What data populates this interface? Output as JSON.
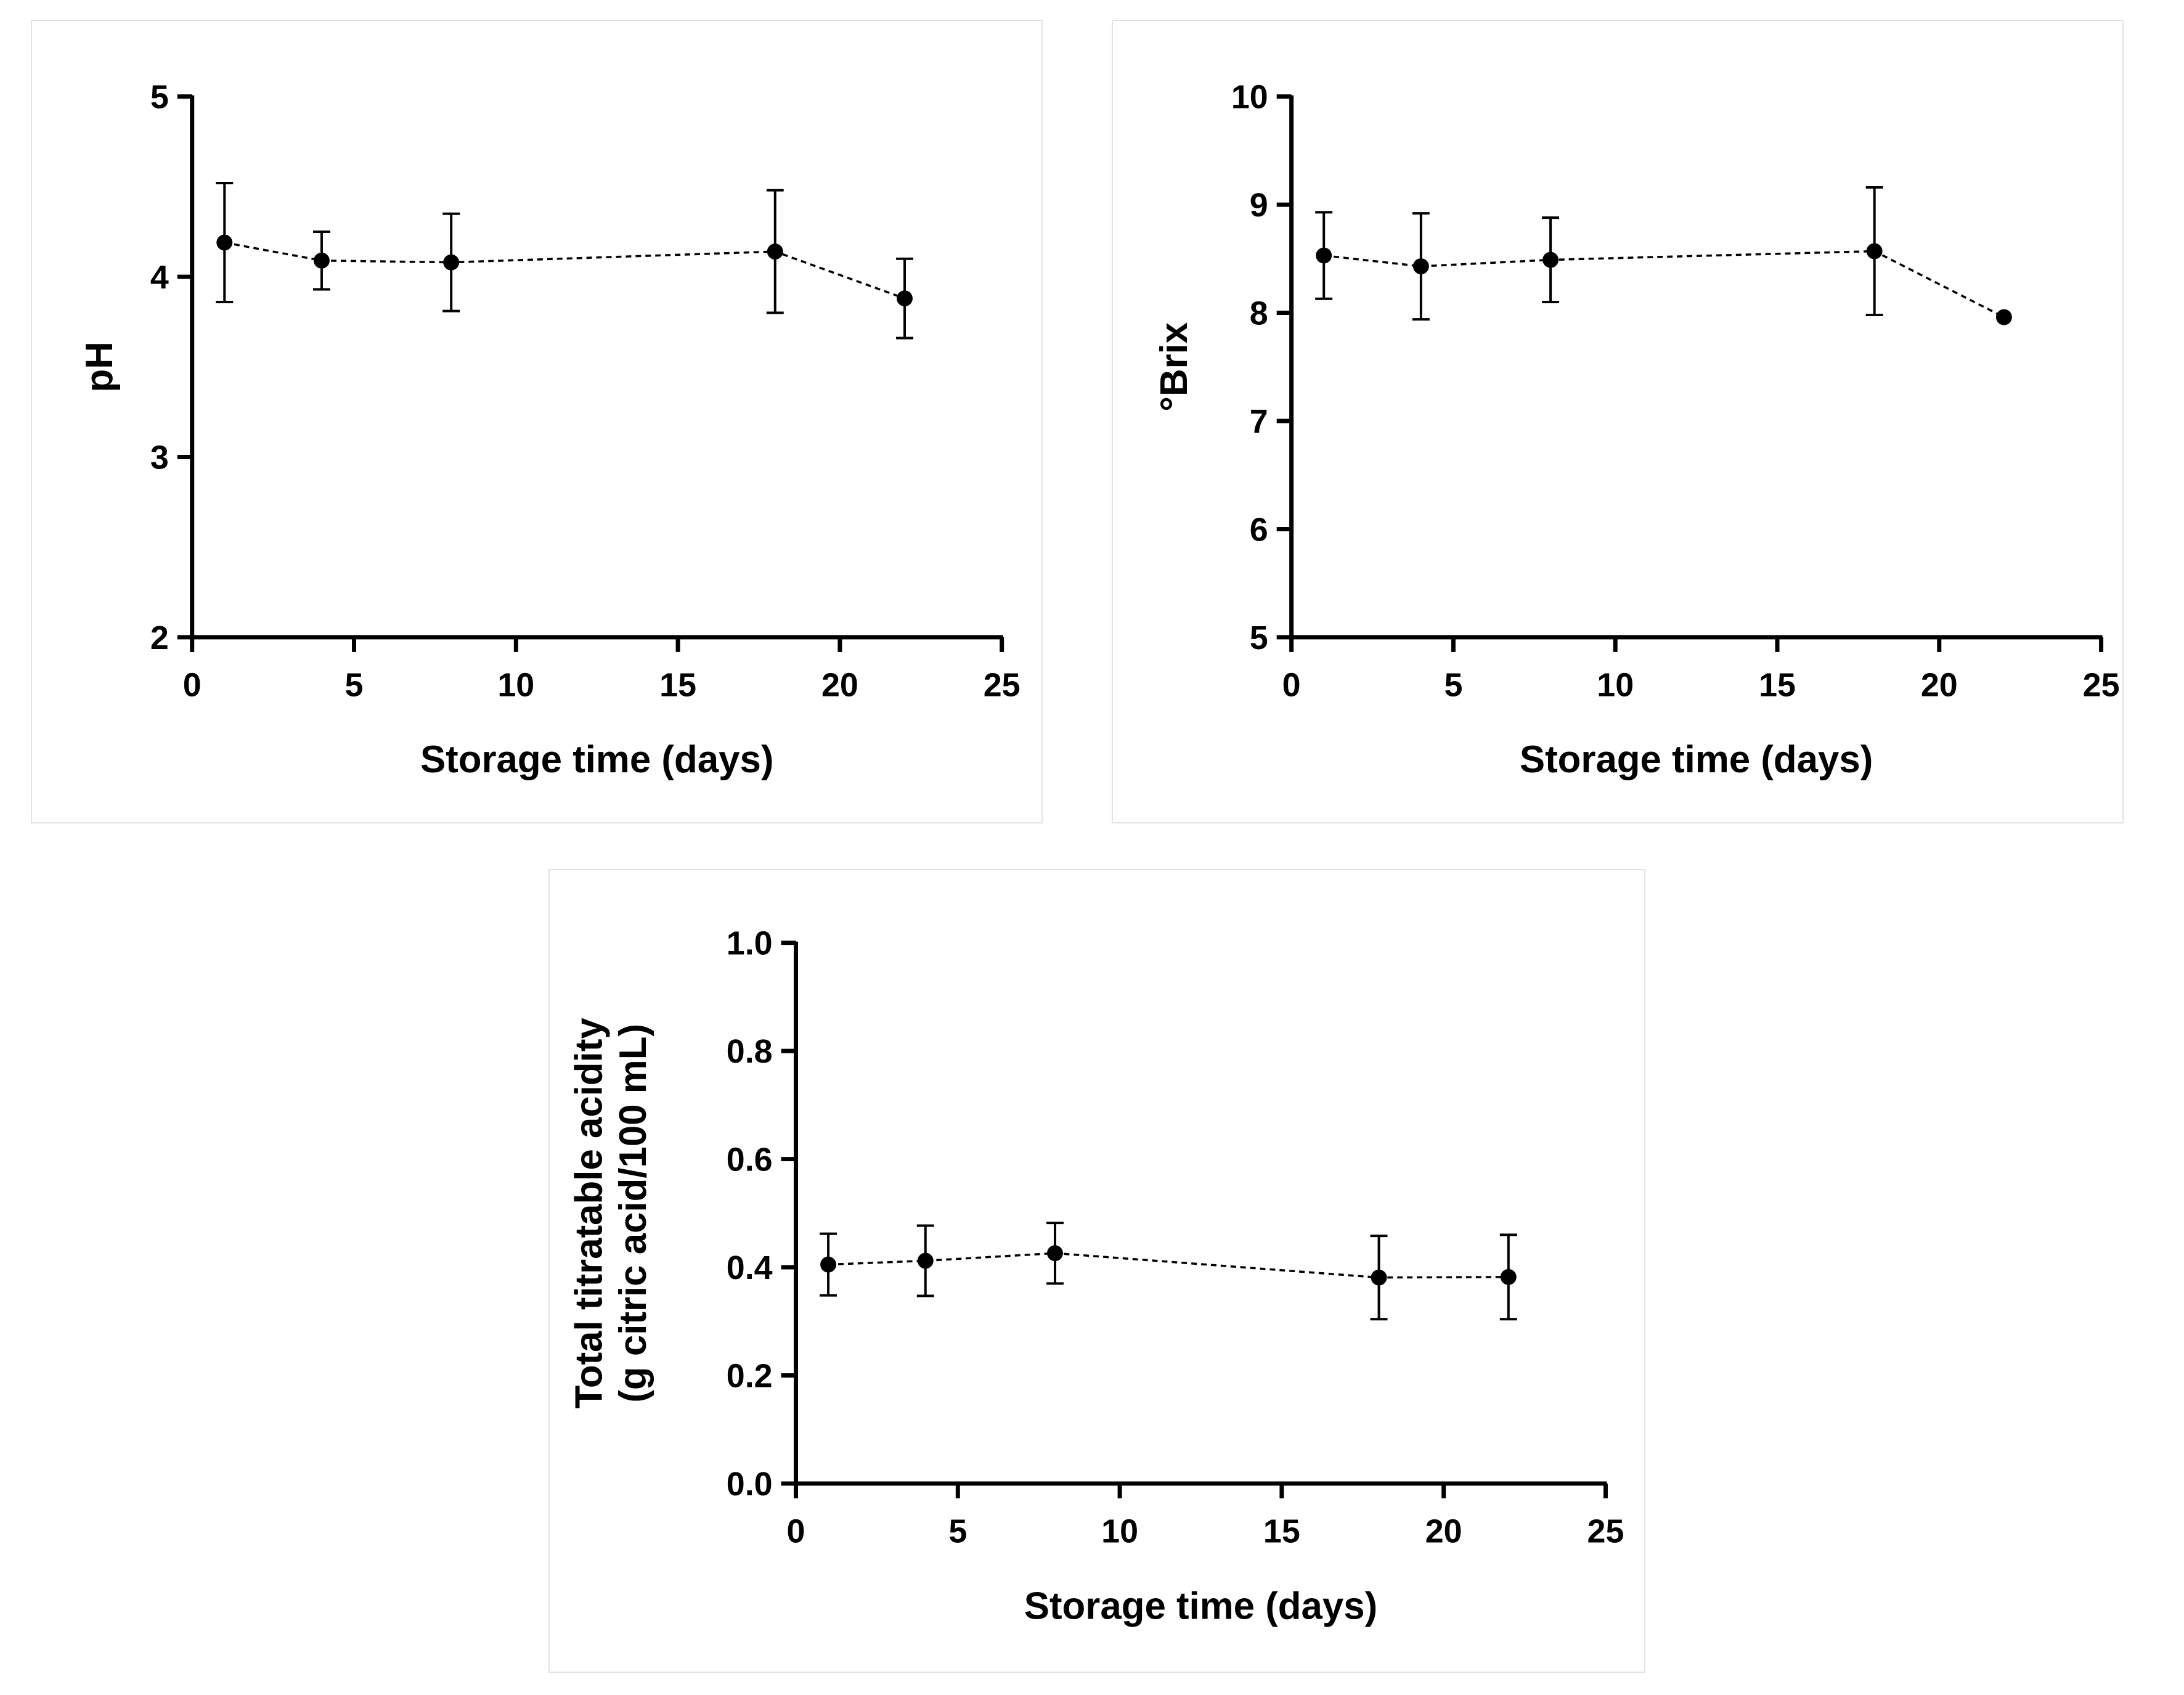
{
  "chart_data": [
    {
      "type": "line",
      "title": "",
      "xlabel": "Storage time (days)",
      "ylabel": "pH",
      "xlim": [
        0,
        25
      ],
      "ylim": [
        2,
        5
      ],
      "x_ticks": [
        0,
        5,
        10,
        15,
        20,
        25
      ],
      "y_ticks": [
        2,
        3,
        4,
        5
      ],
      "y_tick_labels": [
        "2",
        "3",
        "4",
        "5"
      ],
      "grid": false,
      "line_style": "dashed",
      "series": [
        {
          "name": "pH",
          "x": [
            1,
            4,
            8,
            18,
            22
          ],
          "values": [
            4.19,
            4.09,
            4.08,
            4.14,
            3.88
          ],
          "error": [
            0.33,
            0.16,
            0.27,
            0.34,
            0.22
          ]
        }
      ]
    },
    {
      "type": "line",
      "title": "",
      "xlabel": "Storage time (days)",
      "ylabel": "°Brix",
      "xlim": [
        0,
        25
      ],
      "ylim": [
        5,
        10
      ],
      "x_ticks": [
        0,
        5,
        10,
        15,
        20,
        25
      ],
      "y_ticks": [
        5,
        6,
        7,
        8,
        9,
        10
      ],
      "y_tick_labels": [
        "5",
        "6",
        "7",
        "8",
        "9",
        "10"
      ],
      "grid": false,
      "line_style": "dashed",
      "series": [
        {
          "name": "°Brix",
          "x": [
            1,
            4,
            8,
            18,
            22
          ],
          "values": [
            8.53,
            8.43,
            8.49,
            8.57,
            7.96
          ],
          "error": [
            0.4,
            0.49,
            0.39,
            0.59,
            0
          ]
        }
      ]
    },
    {
      "type": "line",
      "title": "",
      "xlabel": "Storage time (days)",
      "ylabel": "Total titratable acidity",
      "ylabel_line2": "(g citric acid/100 mL)",
      "xlim": [
        0,
        25
      ],
      "ylim": [
        0,
        1
      ],
      "x_ticks": [
        0,
        5,
        10,
        15,
        20,
        25
      ],
      "y_ticks": [
        0,
        0.2,
        0.4,
        0.6,
        0.8,
        1.0
      ],
      "y_tick_labels": [
        "0.0",
        "0.2",
        "0.4",
        "0.6",
        "0.8",
        "1.0"
      ],
      "grid": false,
      "line_style": "dashed",
      "series": [
        {
          "name": "Total titratable acidity",
          "x": [
            1,
            4,
            8,
            18,
            22
          ],
          "values": [
            0.405,
            0.412,
            0.426,
            0.381,
            0.382
          ],
          "error": [
            0.057,
            0.065,
            0.056,
            0.077,
            0.078
          ]
        }
      ]
    }
  ]
}
